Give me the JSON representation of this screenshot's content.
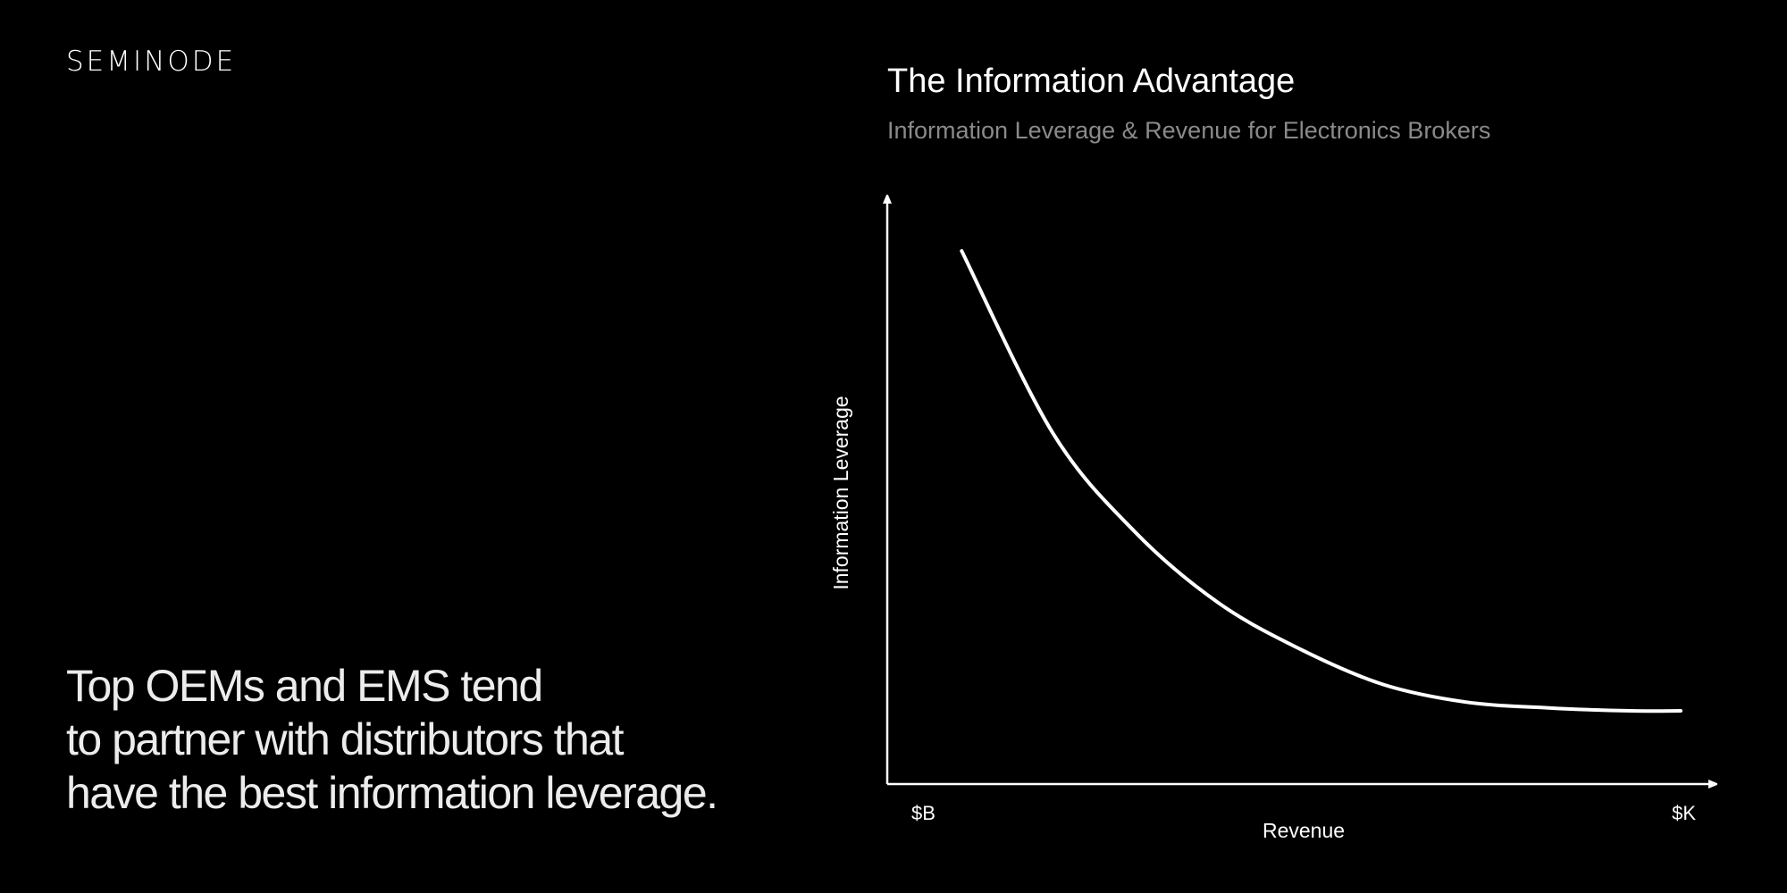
{
  "brand": {
    "logo_text": "SEMINODE"
  },
  "headline": {
    "lines": [
      "Top OEMs and EMS tend",
      "to partner with distributors that",
      "have the best information leverage."
    ]
  },
  "colors": {
    "background": "#000000",
    "foreground": "#ffffff",
    "subtitle": "#8a8a8a"
  },
  "chart_data": {
    "type": "line",
    "title": "The Information Advantage",
    "subtitle": "Information Leverage & Revenue for Electronics Brokers",
    "xlabel": "Revenue",
    "ylabel": "Information Leverage",
    "x_tick_labels": [
      "$B",
      "$K"
    ],
    "grid": false,
    "xlim": [
      0,
      1
    ],
    "ylim": [
      0,
      1
    ],
    "series": [
      {
        "name": "Information Leverage",
        "x": [
          0.09,
          0.2,
          0.3,
          0.4,
          0.5,
          0.6,
          0.7,
          0.8,
          0.9,
          0.96
        ],
        "y": [
          0.91,
          0.6,
          0.43,
          0.31,
          0.23,
          0.17,
          0.14,
          0.13,
          0.125,
          0.125
        ]
      }
    ]
  }
}
